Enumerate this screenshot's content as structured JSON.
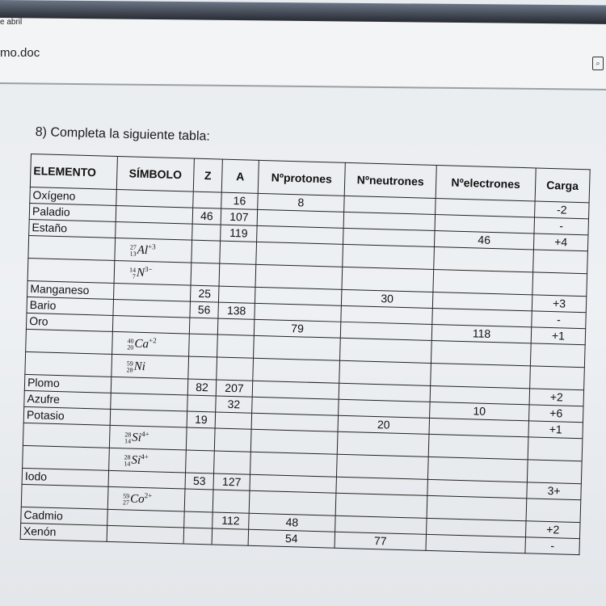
{
  "window": {
    "breadcrumb": "e abril",
    "document_name": "mo.doc",
    "doc_icon": "document-search-icon"
  },
  "question": "8) Completa la siguiente tabla:",
  "table": {
    "headers": [
      "ELEMENTO",
      "SÍMBOLO",
      "Z",
      "A",
      "Nºprotones",
      "Nºneutrones",
      "Nºelectrones",
      "Carga"
    ],
    "rows": [
      {
        "elemento": "Oxígeno",
        "simbolo": null,
        "z": "",
        "a": "16",
        "p": "8",
        "n": "",
        "e": "",
        "carga": "-2"
      },
      {
        "elemento": "Paladio",
        "simbolo": null,
        "z": "46",
        "a": "107",
        "p": "",
        "n": "",
        "e": "",
        "carga": "-"
      },
      {
        "elemento": "Estaño",
        "simbolo": null,
        "z": "",
        "a": "119",
        "p": "",
        "n": "",
        "e": "46",
        "carga": "+4"
      },
      {
        "elemento": "",
        "simbolo": {
          "mass": "27",
          "atomic": "13",
          "sym": "Al",
          "charge": "+3"
        },
        "z": "",
        "a": "",
        "p": "",
        "n": "",
        "e": "",
        "carga": ""
      },
      {
        "elemento": "",
        "simbolo": {
          "mass": "14",
          "atomic": "7",
          "sym": "N",
          "charge": "3−"
        },
        "z": "",
        "a": "",
        "p": "",
        "n": "",
        "e": "",
        "carga": ""
      },
      {
        "elemento": "Manganeso",
        "simbolo": null,
        "z": "25",
        "a": "",
        "p": "",
        "n": "30",
        "e": "",
        "carga": "+3"
      },
      {
        "elemento": "Bario",
        "simbolo": null,
        "z": "56",
        "a": "138",
        "p": "",
        "n": "",
        "e": "",
        "carga": "-"
      },
      {
        "elemento": "Oro",
        "simbolo": null,
        "z": "",
        "a": "",
        "p": "79",
        "n": "",
        "e": "118",
        "carga": "+1"
      },
      {
        "elemento": "",
        "simbolo": {
          "mass": "40",
          "atomic": "20",
          "sym": "Ca",
          "charge": "+2"
        },
        "z": "",
        "a": "",
        "p": "",
        "n": "",
        "e": "",
        "carga": ""
      },
      {
        "elemento": "",
        "simbolo": {
          "mass": "59",
          "atomic": "28",
          "sym": "Ni",
          "charge": ""
        },
        "z": "",
        "a": "",
        "p": "",
        "n": "",
        "e": "",
        "carga": ""
      },
      {
        "elemento": "Plomo",
        "simbolo": null,
        "z": "82",
        "a": "207",
        "p": "",
        "n": "",
        "e": "",
        "carga": "+2"
      },
      {
        "elemento": "Azufre",
        "simbolo": null,
        "z": "",
        "a": "32",
        "p": "",
        "n": "",
        "e": "10",
        "carga": "+6"
      },
      {
        "elemento": "Potasio",
        "simbolo": null,
        "z": "19",
        "a": "",
        "p": "",
        "n": "20",
        "e": "",
        "carga": "+1"
      },
      {
        "elemento": "",
        "simbolo": {
          "mass": "28",
          "atomic": "14",
          "sym": "Si",
          "charge": "4+"
        },
        "z": "",
        "a": "",
        "p": "",
        "n": "",
        "e": "",
        "carga": ""
      },
      {
        "elemento": "",
        "simbolo": {
          "mass": "28",
          "atomic": "14",
          "sym": "Si",
          "charge": "4+"
        },
        "z": "",
        "a": "",
        "p": "",
        "n": "",
        "e": "",
        "carga": ""
      },
      {
        "elemento": "Iodo",
        "simbolo": null,
        "z": "53",
        "a": "127",
        "p": "",
        "n": "",
        "e": "",
        "carga": "3+"
      },
      {
        "elemento": "",
        "simbolo": {
          "mass": "59",
          "atomic": "27",
          "sym": "Co",
          "charge": "2+"
        },
        "z": "",
        "a": "",
        "p": "",
        "n": "",
        "e": "",
        "carga": ""
      },
      {
        "elemento": "Cadmio",
        "simbolo": null,
        "z": "",
        "a": "112",
        "p": "48",
        "n": "",
        "e": "",
        "carga": "+2"
      },
      {
        "elemento": "Xenón",
        "simbolo": null,
        "z": "",
        "a": "",
        "p": "54",
        "n": "77",
        "e": "",
        "carga": "-"
      }
    ]
  }
}
